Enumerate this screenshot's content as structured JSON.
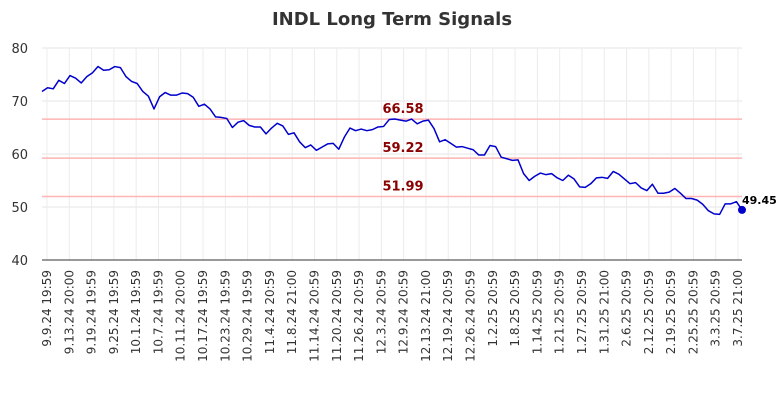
{
  "chart_data": {
    "type": "line",
    "title": "INDL Long Term Signals",
    "ylim": [
      40,
      80
    ],
    "yticks": [
      40,
      50,
      60,
      70,
      80
    ],
    "grid": true,
    "x_tick_labels": [
      "9.9.24 19:59",
      "9.13.24 20:00",
      "9.19.24 19:59",
      "9.25.24 19:59",
      "10.1.24 19:59",
      "10.7.24 19:59",
      "10.11.24 20:00",
      "10.17.24 19:59",
      "10.23.24 19:59",
      "10.29.24 19:59",
      "11.4.24 20:59",
      "11.8.24 21:00",
      "11.14.24 20:59",
      "11.20.24 20:59",
      "11.26.24 20:59",
      "12.3.24 20:59",
      "12.9.24 20:59",
      "12.13.24 21:00",
      "12.19.24 20:59",
      "12.26.24 20:59",
      "1.2.25 20:59",
      "1.8.25 20:59",
      "1.14.25 20:59",
      "1.21.25 20:59",
      "1.27.25 20:59",
      "1.31.25 21:00",
      "2.6.25 20:59",
      "2.12.25 20:59",
      "2.19.25 20:59",
      "2.25.25 20:59",
      "3.3.25 20:59",
      "3.7.25 21:00"
    ],
    "levels": [
      {
        "value": 66.58,
        "label": "66.58"
      },
      {
        "value": 59.22,
        "label": "59.22"
      },
      {
        "value": 51.99,
        "label": "51.99"
      }
    ],
    "last_point_label": "49.45",
    "series": [
      {
        "color": "#0000cc",
        "values": [
          71.8,
          72.5,
          72.3,
          73.9,
          73.3,
          74.8,
          74.3,
          73.4,
          74.6,
          75.3,
          76.5,
          75.8,
          75.9,
          76.5,
          76.3,
          74.6,
          73.7,
          73.3,
          71.8,
          70.9,
          68.5,
          70.8,
          71.6,
          71.1,
          71.1,
          71.5,
          71.4,
          70.7,
          69.0,
          69.4,
          68.5,
          67.0,
          66.9,
          66.7,
          65.0,
          66.0,
          66.3,
          65.4,
          65.1,
          65.1,
          63.8,
          64.9,
          65.8,
          65.3,
          63.7,
          64.0,
          62.3,
          61.2,
          61.7,
          60.7,
          61.3,
          61.9,
          62.0,
          60.9,
          63.2,
          64.9,
          64.4,
          64.7,
          64.4,
          64.6,
          65.1,
          65.2,
          66.5,
          66.6,
          66.4,
          66.2,
          66.6,
          65.7,
          66.2,
          66.4,
          64.8,
          62.3,
          62.7,
          62.0,
          61.3,
          61.4,
          61.1,
          60.8,
          59.8,
          59.8,
          61.6,
          61.4,
          59.4,
          59.1,
          58.8,
          58.9,
          56.3,
          55.0,
          55.8,
          56.4,
          56.1,
          56.3,
          55.5,
          55.0,
          56.0,
          55.3,
          53.8,
          53.7,
          54.4,
          55.5,
          55.6,
          55.4,
          56.7,
          56.2,
          55.3,
          54.4,
          54.6,
          53.6,
          53.1,
          54.3,
          52.6,
          52.6,
          52.8,
          53.5,
          52.6,
          51.6,
          51.6,
          51.3,
          50.5,
          49.3,
          48.7,
          48.6,
          50.6,
          50.6,
          51.0,
          49.45
        ]
      }
    ]
  }
}
